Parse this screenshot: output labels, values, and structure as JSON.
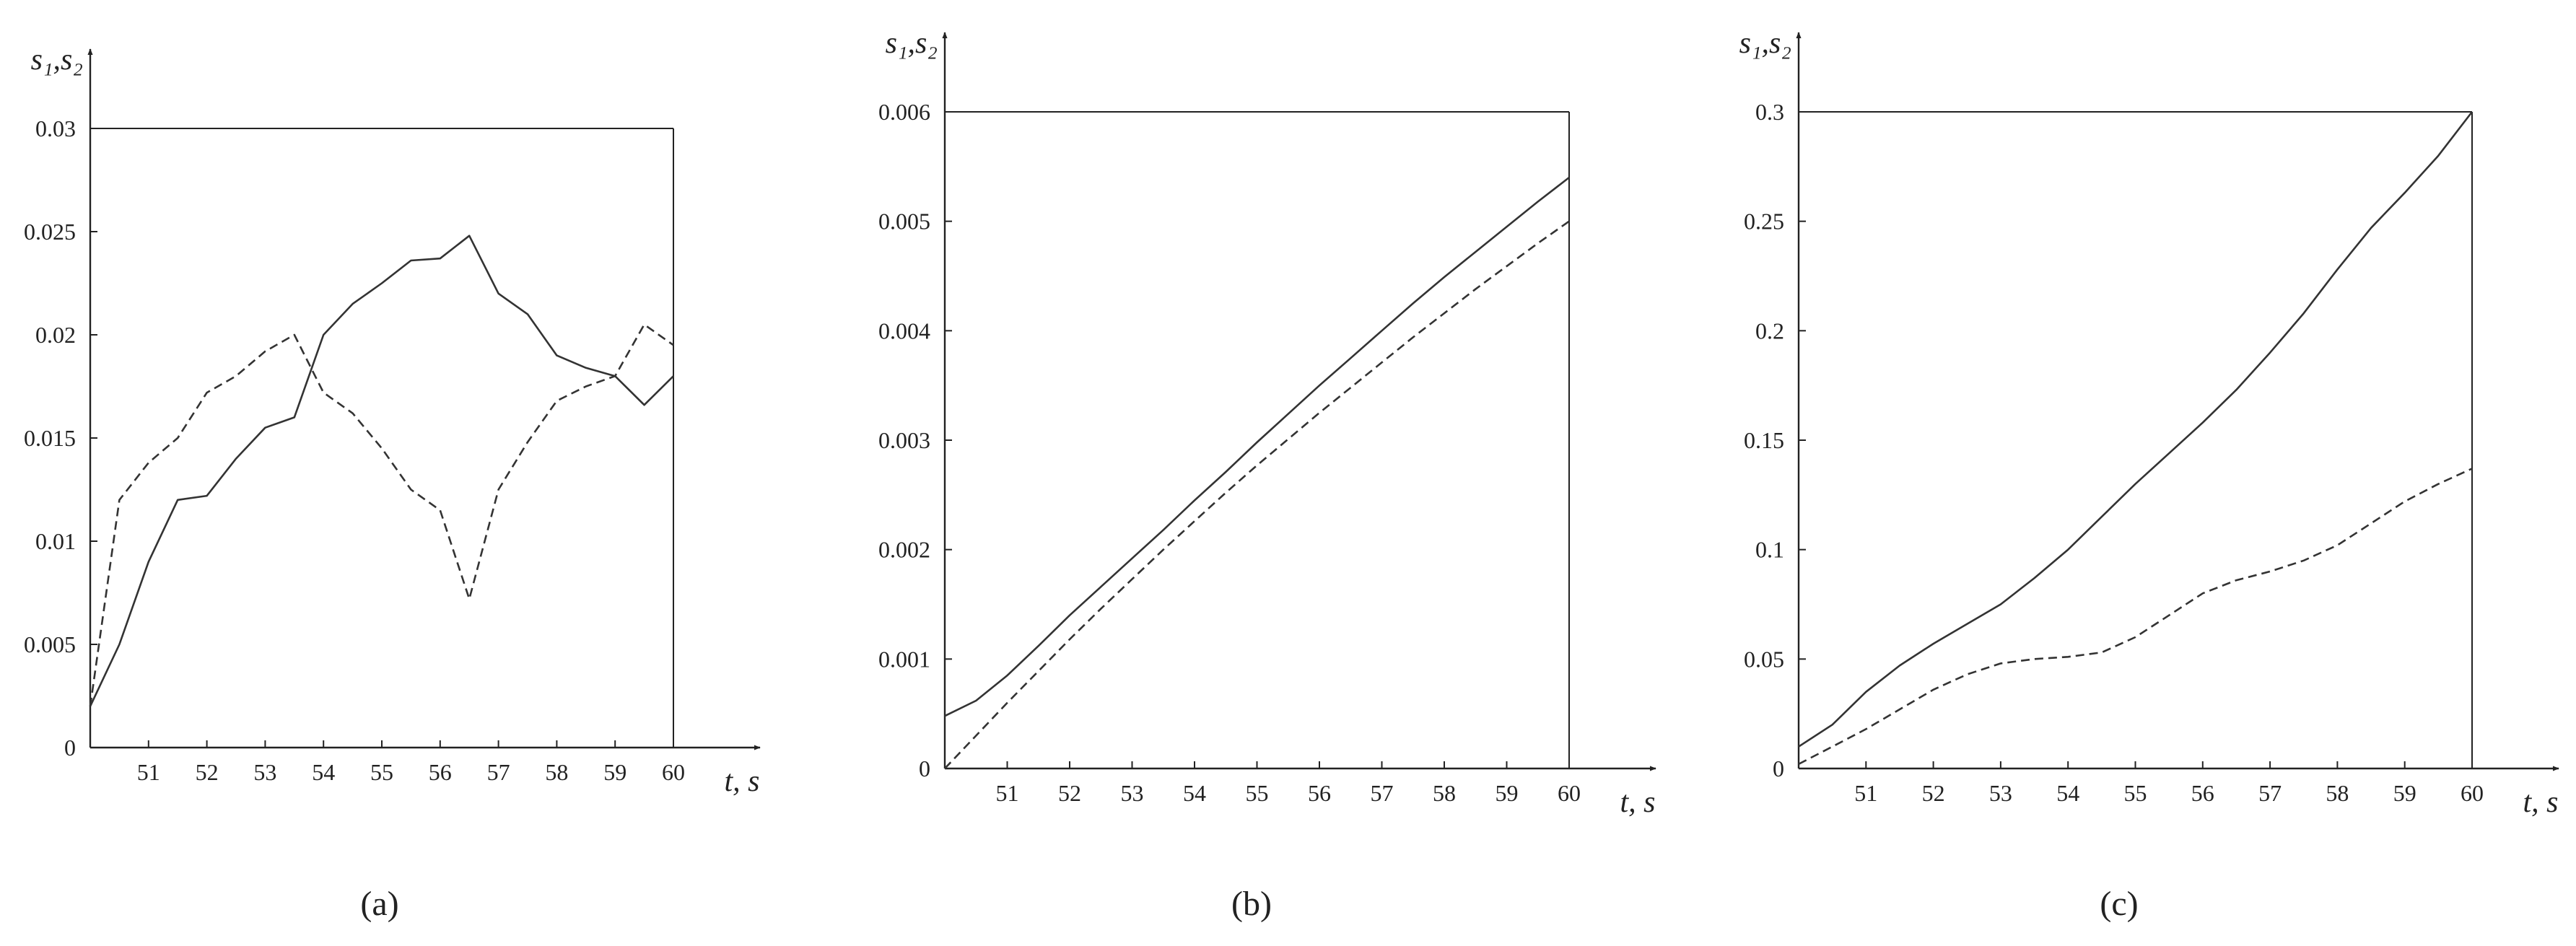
{
  "chart_data": [
    {
      "type": "line",
      "caption": "(a)",
      "ylabel": "s₁,s₂",
      "xlabel": "t, s",
      "x": [
        50,
        50.5,
        51,
        51.5,
        52,
        52.5,
        53,
        53.5,
        54,
        54.5,
        55,
        55.5,
        56,
        56.5,
        57,
        57.5,
        58,
        58.5,
        59,
        59.5,
        60
      ],
      "xlim": [
        50,
        60
      ],
      "xticks": [
        51,
        52,
        53,
        54,
        55,
        56,
        57,
        58,
        59,
        60
      ],
      "ylim": [
        0,
        0.03
      ],
      "yticks": [
        0,
        0.005,
        0.01,
        0.015,
        0.02,
        0.025,
        0.03
      ],
      "series": [
        {
          "color": "#333333",
          "style": "solid",
          "values": [
            0.002,
            0.005,
            0.009,
            0.012,
            0.0122,
            0.014,
            0.0155,
            0.016,
            0.02,
            0.0215,
            0.0225,
            0.0236,
            0.0237,
            0.0248,
            0.022,
            0.021,
            0.019,
            0.0184,
            0.018,
            0.0166,
            0.018
          ]
        },
        {
          "color": "#333333",
          "style": "dashed",
          "values": [
            0.002,
            0.012,
            0.0138,
            0.015,
            0.0172,
            0.018,
            0.0192,
            0.02,
            0.0172,
            0.0162,
            0.0145,
            0.0125,
            0.0115,
            0.0072,
            0.0125,
            0.0148,
            0.0168,
            0.0175,
            0.018,
            0.0205,
            0.0195
          ]
        }
      ]
    },
    {
      "type": "line",
      "caption": "(b)",
      "ylabel": "s₁,s₂",
      "xlabel": "t, s",
      "x": [
        50,
        50.5,
        51,
        51.5,
        52,
        52.5,
        53,
        53.5,
        54,
        54.5,
        55,
        55.5,
        56,
        56.5,
        57,
        57.5,
        58,
        58.5,
        59,
        59.5,
        60
      ],
      "xlim": [
        50,
        60
      ],
      "xticks": [
        51,
        52,
        53,
        54,
        55,
        56,
        57,
        58,
        59,
        60
      ],
      "ylim": [
        0,
        0.006
      ],
      "yticks": [
        0,
        0.001,
        0.002,
        0.003,
        0.004,
        0.005,
        0.006
      ],
      "series": [
        {
          "color": "#333333",
          "style": "solid",
          "values": [
            0.00048,
            0.00062,
            0.00085,
            0.00112,
            0.0014,
            0.00166,
            0.00192,
            0.00218,
            0.00245,
            0.00271,
            0.00298,
            0.00324,
            0.0035,
            0.00375,
            0.004,
            0.00425,
            0.00449,
            0.00472,
            0.00495,
            0.00518,
            0.0054
          ]
        },
        {
          "color": "#333333",
          "style": "dashed",
          "values": [
            0,
            0.0003,
            0.0006,
            0.00089,
            0.00118,
            0.00146,
            0.00173,
            0.002,
            0.00226,
            0.00252,
            0.00277,
            0.00301,
            0.00325,
            0.00348,
            0.00371,
            0.00394,
            0.00416,
            0.00438,
            0.00459,
            0.0048,
            0.005
          ]
        }
      ]
    },
    {
      "type": "line",
      "caption": "(c)",
      "ylabel": "s₁,s₂",
      "xlabel": "t, s",
      "x": [
        50,
        50.5,
        51,
        51.5,
        52,
        52.5,
        53,
        53.5,
        54,
        54.5,
        55,
        55.5,
        56,
        56.5,
        57,
        57.5,
        58,
        58.5,
        59,
        59.5,
        60
      ],
      "xlim": [
        50,
        60
      ],
      "xticks": [
        51,
        52,
        53,
        54,
        55,
        56,
        57,
        58,
        59,
        60
      ],
      "ylim": [
        0,
        0.3
      ],
      "yticks": [
        0,
        0.05,
        0.1,
        0.15,
        0.2,
        0.25,
        0.3
      ],
      "series": [
        {
          "color": "#333333",
          "style": "solid",
          "values": [
            0.01,
            0.02,
            0.035,
            0.047,
            0.057,
            0.066,
            0.075,
            0.087,
            0.1,
            0.115,
            0.13,
            0.144,
            0.158,
            0.173,
            0.19,
            0.208,
            0.228,
            0.247,
            0.263,
            0.28,
            0.3
          ]
        },
        {
          "color": "#333333",
          "style": "dashed",
          "values": [
            0.002,
            0.01,
            0.018,
            0.027,
            0.036,
            0.043,
            0.048,
            0.05,
            0.051,
            0.053,
            0.06,
            0.07,
            0.08,
            0.086,
            0.09,
            0.095,
            0.102,
            0.112,
            0.122,
            0.13,
            0.137
          ]
        }
      ]
    }
  ]
}
